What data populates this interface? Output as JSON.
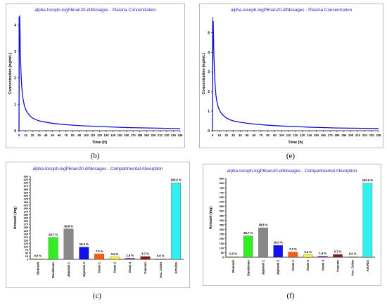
{
  "panels": [
    {
      "caption": "(b)",
      "chart": {
        "type": "line",
        "title": "alpha-tocoph-logP6nan20-difdosages - Plasma Concentration",
        "xlabel": "Time (h)",
        "ylabel": "Concentration (ng/mL)",
        "xlim": [
          0,
          240
        ],
        "ylim": [
          0,
          4.3
        ],
        "x_ticks": [
          0,
          10,
          20,
          30,
          40,
          50,
          60,
          70,
          80,
          90,
          100,
          110,
          120,
          130,
          140,
          150,
          160,
          170,
          180,
          190,
          200,
          210,
          220,
          230,
          240
        ],
        "y_ticks": [
          0,
          1,
          2,
          3,
          4
        ],
        "series": [
          {
            "x": [
              0,
              0.5,
              1,
              1.5,
              2,
              3,
              4,
              5,
              6,
              8,
              10,
              12,
              15,
              20,
              25,
              30,
              40,
              50,
              60,
              80,
              100,
              120,
              140,
              160,
              180,
              200,
              220,
              240
            ],
            "values": [
              0,
              4.2,
              4.35,
              3.8,
              3.0,
              2.2,
              1.7,
              1.4,
              1.2,
              0.95,
              0.8,
              0.7,
              0.6,
              0.48,
              0.42,
              0.37,
              0.32,
              0.28,
              0.25,
              0.21,
              0.18,
              0.16,
              0.14,
              0.12,
              0.11,
              0.1,
              0.09,
              0.08
            ]
          }
        ],
        "color": "#1010d0"
      }
    },
    {
      "caption": "(e)",
      "chart": {
        "type": "line",
        "title": "alpha-tocoph-logP6nan20-difdosages - Plasma Concentration",
        "xlabel": "Time (h)",
        "ylabel": "Concentration (ng/mL)",
        "xlim": [
          0,
          240
        ],
        "ylim": [
          0,
          5.8
        ],
        "x_ticks": [
          0,
          10,
          20,
          30,
          40,
          50,
          60,
          70,
          80,
          90,
          100,
          110,
          120,
          130,
          140,
          150,
          160,
          170,
          180,
          190,
          200,
          210,
          220,
          230,
          240
        ],
        "y_ticks": [
          0,
          1,
          2,
          3,
          4,
          5
        ],
        "series": [
          {
            "x": [
              0,
              0.5,
              1,
              1.5,
              2,
              3,
              4,
              5,
              6,
              8,
              10,
              12,
              15,
              20,
              25,
              30,
              40,
              50,
              60,
              80,
              100,
              120,
              140,
              160,
              180,
              200,
              220,
              240
            ],
            "values": [
              0,
              5.4,
              5.6,
              4.8,
              3.9,
              2.9,
              2.2,
              1.8,
              1.55,
              1.25,
              1.05,
              0.92,
              0.8,
              0.65,
              0.56,
              0.5,
              0.43,
              0.38,
              0.34,
              0.28,
              0.24,
              0.21,
              0.18,
              0.16,
              0.14,
              0.13,
              0.12,
              0.11
            ]
          }
        ],
        "color": "#1010d0"
      }
    },
    {
      "caption": "(c)",
      "chart": {
        "type": "bar",
        "title": "alpha-tocoph-logP6nan20-difdosages - Compartmental Absorption",
        "ylabel": "Amount (mg)",
        "ylim": [
          0,
          650
        ],
        "y_ticks": [
          0,
          25,
          50,
          75,
          100,
          125,
          150,
          175,
          200,
          225,
          250,
          275,
          300,
          325,
          350,
          375,
          400,
          425,
          450,
          475,
          500,
          525,
          550,
          575,
          600,
          625,
          650
        ],
        "categories": [
          "Stomach",
          "Duodenum",
          "Jejunum 1",
          "Jejunum 2",
          "Ileum 1",
          "Ileum 2",
          "Ileum 3",
          "Caecum",
          "Asc. Colon",
          "AmtAbs"
        ],
        "values": [
          0,
          172,
          238,
          96,
          42,
          19,
          9.5,
          22,
          0.5,
          600
        ],
        "labels": [
          "0.0 %",
          "28.7 %",
          "39.8 %",
          "16.0 %",
          "7.0 %",
          "3.2 %",
          "1.6 %",
          "3.7 %",
          "0.0 %",
          "100.0 %"
        ],
        "colors": [
          "#ffd700",
          "#33ee22",
          "#888888",
          "#1111ee",
          "#ff5a10",
          "#ffee22",
          "#b040c0",
          "#8b1a1a",
          "#ff99aa",
          "#33f0f0"
        ]
      }
    },
    {
      "caption": "(f)",
      "chart": {
        "type": "bar",
        "title": "alpha-tocoph-logP6nan20-difdosages - Compartmental Absorption",
        "ylabel": "Amount (mg)",
        "ylim": [
          0,
          850
        ],
        "y_ticks": [
          0,
          50,
          100,
          150,
          200,
          250,
          300,
          350,
          400,
          450,
          500,
          550,
          600,
          650,
          700,
          750,
          800,
          850
        ],
        "categories": [
          "Stomach",
          "Duodenum",
          "Jejunum 1",
          "Jejunum 2",
          "Ileum 1",
          "Ileum 2",
          "Ileum 3",
          "Caecum",
          "Asc. Colon",
          "AmtAbs"
        ],
        "values": [
          0,
          230,
          318,
          128,
          56,
          26,
          12.5,
          30,
          0.5,
          800
        ],
        "labels": [
          "0.0 %",
          "28.7 %",
          "39.8 %",
          "16.0 %",
          "7.0 %",
          "3.2 %",
          "1.6 %",
          "3.7 %",
          "0.0 %",
          "100.0 %"
        ],
        "colors": [
          "#ffd700",
          "#33ee22",
          "#888888",
          "#1111ee",
          "#ff5a10",
          "#ffee22",
          "#b040c0",
          "#8b1a1a",
          "#ff99aa",
          "#33f0f0"
        ]
      }
    }
  ]
}
